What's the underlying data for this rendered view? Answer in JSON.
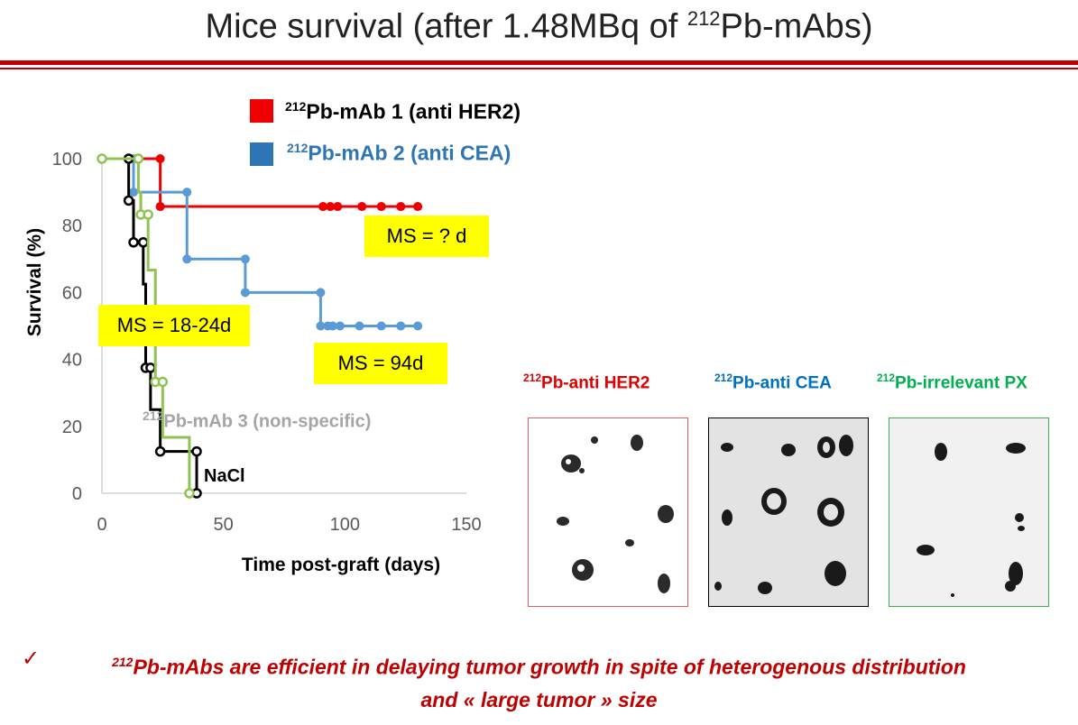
{
  "title": {
    "prefix": "Mice survival (after 1.48MBq of ",
    "sup": "212",
    "suffix": "Pb-mAbs)"
  },
  "legend": [
    {
      "sup": "212",
      "text": "Pb-mAb 1 (anti HER2)",
      "color": "#ee0000"
    },
    {
      "sup": "212",
      "text": "Pb-mAb 2 (anti CEA)",
      "color": "#2e75b6"
    }
  ],
  "series_label_mab3": {
    "sup": "212",
    "text": "Pb-mAb 3 (non-specific)",
    "color": "#a5a5a5"
  },
  "series_label_nacl": {
    "text": "NaCl",
    "color": "#000000"
  },
  "ms_labels": {
    "mab1": "MS =  ? d",
    "mab3_nacl": "MS = 18-24d",
    "mab2": "MS = 94d"
  },
  "chart_data": {
    "type": "line",
    "title": "",
    "xlabel": "Time  post-graft (days)",
    "ylabel": "Survival (%)",
    "xlim": [
      0,
      150
    ],
    "ylim": [
      0,
      100
    ],
    "xticks": [
      0,
      50,
      100,
      150
    ],
    "yticks": [
      0,
      20,
      40,
      60,
      80,
      100
    ],
    "grid": false,
    "series": [
      {
        "name": "212Pb-mAb 1 (anti HER2)",
        "color": "#ee0000",
        "x": [
          0,
          24,
          24,
          130
        ],
        "y": [
          100,
          100,
          85.7,
          85.7
        ],
        "markers": [
          [
            24,
            100
          ],
          [
            24,
            85.7
          ],
          [
            91,
            85.7
          ],
          [
            94,
            85.7
          ],
          [
            97,
            85.7
          ],
          [
            107,
            85.7
          ],
          [
            115,
            85.7
          ],
          [
            123,
            85.7
          ],
          [
            130,
            85.7
          ]
        ]
      },
      {
        "name": "212Pb-mAb 2 (anti CEA)",
        "color": "#5b9bd5",
        "x": [
          0,
          13,
          13,
          35,
          35,
          59,
          59,
          90,
          90,
          130
        ],
        "y": [
          100,
          100,
          90,
          90,
          70,
          70,
          60,
          60,
          50,
          50
        ],
        "markers": [
          [
            13,
            100
          ],
          [
            13,
            90
          ],
          [
            35,
            90
          ],
          [
            35,
            70
          ],
          [
            59,
            70
          ],
          [
            59,
            60
          ],
          [
            90,
            60
          ],
          [
            90,
            50
          ],
          [
            93,
            50
          ],
          [
            95,
            50
          ],
          [
            98,
            50
          ],
          [
            106,
            50
          ],
          [
            115,
            50
          ],
          [
            123,
            50
          ],
          [
            130,
            50
          ]
        ]
      },
      {
        "name": "NaCl",
        "color": "#000000",
        "x": [
          0,
          11,
          11,
          13,
          13,
          17,
          17,
          18,
          18,
          20,
          20,
          24,
          24,
          39,
          39
        ],
        "y": [
          100,
          100,
          87.5,
          87.5,
          75,
          75,
          62.5,
          62.5,
          37.5,
          37.5,
          25,
          25,
          12.5,
          12.5,
          0
        ],
        "markers": [
          [
            11,
            100
          ],
          [
            11,
            87.5
          ],
          [
            13,
            75
          ],
          [
            17,
            75
          ],
          [
            18,
            37.5
          ],
          [
            20,
            37.5
          ],
          [
            24,
            12.5
          ],
          [
            39,
            12.5
          ],
          [
            39,
            0
          ]
        ]
      },
      {
        "name": "212Pb-mAb 3 (non-specific)",
        "color": "#8fc454",
        "x": [
          0,
          15,
          15,
          16,
          16,
          19,
          19,
          22,
          22,
          25,
          25,
          36,
          36
        ],
        "y": [
          100,
          100,
          90,
          90,
          83.3,
          83.3,
          66.7,
          66.7,
          33.3,
          33.3,
          16.7,
          16.7,
          0
        ],
        "markers": [
          [
            0,
            100
          ],
          [
            15,
            100
          ],
          [
            16,
            83.3
          ],
          [
            19,
            83.3
          ],
          [
            22,
            33.3
          ],
          [
            25,
            33.3
          ],
          [
            36,
            0
          ]
        ]
      }
    ]
  },
  "images": [
    {
      "label_sup": "212",
      "label_text": "Pb-anti HER2",
      "color": "#e00000"
    },
    {
      "label_sup": "212",
      "label_text": "Pb-anti CEA",
      "color": "#0070c0"
    },
    {
      "label_sup": "212",
      "label_text": "Pb-irrelevant  PX",
      "color": "#00b050"
    }
  ],
  "conclusion": {
    "check": "✓",
    "sup": "212",
    "line1": "Pb-mAbs are efficient in delaying tumor growth in spite of heterogenous distribution",
    "line2": "and « large tumor » size"
  }
}
